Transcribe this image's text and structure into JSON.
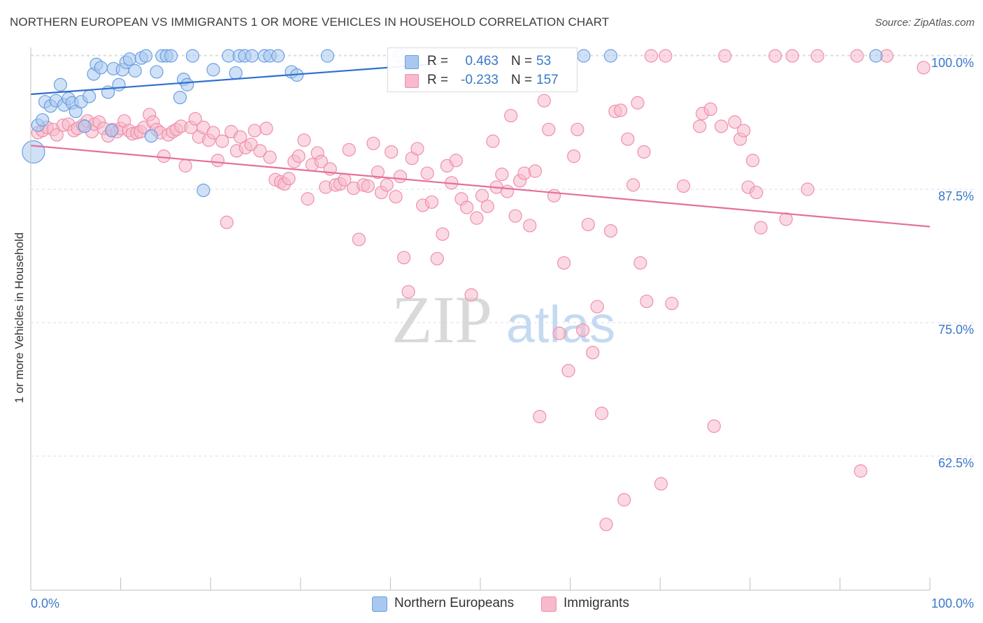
{
  "title": "NORTHERN EUROPEAN VS IMMIGRANTS 1 OR MORE VEHICLES IN HOUSEHOLD CORRELATION CHART",
  "source": "Source: ZipAtlas.com",
  "watermark": {
    "zip": "ZIP",
    "atlas": "atlas"
  },
  "legend_top": [
    {
      "r_label": "R =",
      "r_value": "0.463",
      "n_label": "N =",
      "n_value": "53"
    },
    {
      "r_label": "R =",
      "r_value": "-0.233",
      "n_label": "N =",
      "n_value": "157"
    }
  ],
  "legend_bottom": [
    "Northern Europeans",
    "Immigrants"
  ],
  "colors": {
    "blue_fill": "#a9c8f0",
    "blue_stroke": "#6a9fe0",
    "blue_line": "#2e6fd0",
    "pink_fill": "#f7b9cb",
    "pink_stroke": "#ee8fac",
    "pink_line": "#e5709a",
    "value_text": "#3a78c9",
    "grid": "#d8dde6"
  },
  "chart_data": {
    "type": "scatter",
    "title": "NORTHERN EUROPEAN VS IMMIGRANTS 1 OR MORE VEHICLES IN HOUSEHOLD CORRELATION CHART",
    "xlabel": "",
    "ylabel": "1 or more Vehicles in Household",
    "xlim": [
      0,
      100
    ],
    "ylim": [
      50,
      102
    ],
    "x_tick_labels": [
      "0.0%",
      "100.0%"
    ],
    "y_ticks": [
      62.5,
      75.0,
      87.5,
      100.0
    ],
    "y_tick_labels": [
      "62.5%",
      "75.0%",
      "87.5%",
      "100.0%"
    ],
    "grid": "horizontal dashed",
    "legend_position": "top-center and bottom",
    "series": [
      {
        "name": "Northern Europeans",
        "color": "blue",
        "trend": {
          "x0": 0,
          "y0": 96.4,
          "x1": 46,
          "y1": 99.3
        },
        "points": [
          [
            0.3,
            91.0,
            16
          ],
          [
            0.8,
            93.5,
            9
          ],
          [
            1.3,
            94.0,
            9
          ],
          [
            1.6,
            95.7,
            9
          ],
          [
            2.2,
            95.3,
            9
          ],
          [
            2.8,
            95.8,
            9
          ],
          [
            3.3,
            97.3,
            9
          ],
          [
            3.7,
            95.4,
            9
          ],
          [
            4.2,
            96.0,
            9
          ],
          [
            4.6,
            95.6,
            9
          ],
          [
            5.0,
            94.8,
            9
          ],
          [
            5.6,
            95.7,
            9
          ],
          [
            6.0,
            93.4,
            9
          ],
          [
            6.5,
            96.2,
            9
          ],
          [
            7.0,
            98.3,
            9
          ],
          [
            7.3,
            99.2,
            9
          ],
          [
            7.8,
            98.9,
            9
          ],
          [
            8.6,
            96.6,
            9
          ],
          [
            9.0,
            93.0,
            9
          ],
          [
            9.2,
            98.8,
            9
          ],
          [
            9.8,
            97.3,
            9
          ],
          [
            10.2,
            98.7,
            9
          ],
          [
            10.6,
            99.4,
            9
          ],
          [
            11.0,
            99.7,
            9
          ],
          [
            11.6,
            98.6,
            9
          ],
          [
            12.3,
            99.8,
            9
          ],
          [
            12.8,
            100,
            9
          ],
          [
            13.4,
            92.5,
            9
          ],
          [
            14.0,
            98.5,
            9
          ],
          [
            14.6,
            100,
            9
          ],
          [
            15.1,
            100,
            9
          ],
          [
            15.6,
            100,
            9
          ],
          [
            16.6,
            96.1,
            9
          ],
          [
            17.0,
            97.8,
            9
          ],
          [
            17.4,
            97.3,
            9
          ],
          [
            18.0,
            100,
            9
          ],
          [
            19.2,
            87.4,
            9
          ],
          [
            20.3,
            98.7,
            9
          ],
          [
            22.0,
            100,
            9
          ],
          [
            22.8,
            98.4,
            9
          ],
          [
            23.2,
            100,
            9
          ],
          [
            23.8,
            100,
            9
          ],
          [
            24.6,
            100,
            9
          ],
          [
            26.0,
            100,
            9
          ],
          [
            26.6,
            100,
            9
          ],
          [
            27.5,
            100,
            9
          ],
          [
            29.0,
            98.5,
            9
          ],
          [
            29.6,
            98.2,
            9
          ],
          [
            33.0,
            100,
            9
          ],
          [
            41.0,
            100,
            9
          ],
          [
            61.5,
            100,
            9
          ],
          [
            64.5,
            100,
            9
          ],
          [
            94.0,
            100,
            9
          ]
        ]
      },
      {
        "name": "Immigrants",
        "color": "pink",
        "trend": {
          "x0": 0,
          "y0": 91.6,
          "x1": 100,
          "y1": 84.0
        },
        "points": [
          [
            0.8,
            92.8,
            9
          ],
          [
            1.3,
            93.0,
            9
          ],
          [
            1.8,
            93.3,
            9
          ],
          [
            2.5,
            93.1,
            9
          ],
          [
            2.9,
            92.6,
            9
          ],
          [
            3.6,
            93.5,
            9
          ],
          [
            4.2,
            93.6,
            9
          ],
          [
            4.8,
            93.0,
            9
          ],
          [
            5.2,
            93.2,
            9
          ],
          [
            5.8,
            93.5,
            9
          ],
          [
            6.3,
            93.9,
            9
          ],
          [
            6.8,
            92.9,
            9
          ],
          [
            7.1,
            93.6,
            9
          ],
          [
            7.6,
            93.8,
            9
          ],
          [
            8.1,
            93.2,
            9
          ],
          [
            8.6,
            92.5,
            9
          ],
          [
            9.1,
            93.1,
            9
          ],
          [
            9.6,
            92.9,
            9
          ],
          [
            10.0,
            93.2,
            9
          ],
          [
            10.4,
            93.9,
            9
          ],
          [
            10.9,
            93.0,
            9
          ],
          [
            11.3,
            92.7,
            9
          ],
          [
            11.8,
            92.8,
            9
          ],
          [
            12.2,
            92.9,
            9
          ],
          [
            12.6,
            93.3,
            9
          ],
          [
            13.2,
            94.5,
            9
          ],
          [
            13.6,
            93.8,
            9
          ],
          [
            14.0,
            93.1,
            9
          ],
          [
            14.4,
            92.8,
            9
          ],
          [
            14.8,
            90.6,
            9
          ],
          [
            15.3,
            92.6,
            9
          ],
          [
            15.8,
            92.9,
            9
          ],
          [
            16.2,
            93.1,
            9
          ],
          [
            16.7,
            93.4,
            9
          ],
          [
            17.2,
            89.7,
            9
          ],
          [
            17.8,
            93.3,
            9
          ],
          [
            18.3,
            94.1,
            9
          ],
          [
            18.7,
            92.4,
            9
          ],
          [
            19.2,
            93.3,
            9
          ],
          [
            19.8,
            92.1,
            9
          ],
          [
            20.3,
            92.8,
            9
          ],
          [
            20.8,
            90.2,
            9
          ],
          [
            21.3,
            92.0,
            9
          ],
          [
            21.8,
            84.4,
            9
          ],
          [
            22.3,
            92.9,
            9
          ],
          [
            22.9,
            91.1,
            9
          ],
          [
            23.3,
            92.4,
            9
          ],
          [
            23.9,
            91.4,
            9
          ],
          [
            24.5,
            91.7,
            9
          ],
          [
            24.9,
            93.0,
            9
          ],
          [
            25.5,
            91.1,
            9
          ],
          [
            26.2,
            93.2,
            9
          ],
          [
            26.6,
            90.5,
            9
          ],
          [
            27.2,
            88.4,
            9
          ],
          [
            27.8,
            88.2,
            9
          ],
          [
            28.2,
            88.0,
            9
          ],
          [
            28.7,
            88.5,
            9
          ],
          [
            29.3,
            90.1,
            9
          ],
          [
            29.8,
            90.6,
            9
          ],
          [
            30.4,
            92.1,
            9
          ],
          [
            30.8,
            86.6,
            9
          ],
          [
            31.3,
            89.8,
            9
          ],
          [
            31.9,
            90.9,
            9
          ],
          [
            32.3,
            90.1,
            9
          ],
          [
            32.8,
            87.7,
            9
          ],
          [
            33.3,
            89.4,
            9
          ],
          [
            33.9,
            87.9,
            9
          ],
          [
            34.4,
            88.0,
            9
          ],
          [
            34.9,
            88.4,
            9
          ],
          [
            35.4,
            91.2,
            9
          ],
          [
            35.9,
            87.6,
            9
          ],
          [
            36.5,
            82.8,
            9
          ],
          [
            37.0,
            87.9,
            9
          ],
          [
            37.5,
            87.8,
            9
          ],
          [
            38.1,
            91.8,
            9
          ],
          [
            38.6,
            89.1,
            9
          ],
          [
            39.0,
            87.2,
            9
          ],
          [
            39.6,
            87.9,
            9
          ],
          [
            40.1,
            91.0,
            9
          ],
          [
            40.6,
            86.8,
            9
          ],
          [
            41.1,
            88.7,
            9
          ],
          [
            41.5,
            81.1,
            9
          ],
          [
            42.0,
            77.9,
            9
          ],
          [
            42.4,
            90.4,
            9
          ],
          [
            43.0,
            91.3,
            9
          ],
          [
            43.6,
            86.0,
            9
          ],
          [
            44.1,
            89.0,
            9
          ],
          [
            44.6,
            86.3,
            9
          ],
          [
            45.2,
            81.0,
            9
          ],
          [
            45.8,
            83.3,
            9
          ],
          [
            46.3,
            89.7,
            9
          ],
          [
            46.8,
            88.1,
            9
          ],
          [
            47.3,
            90.2,
            9
          ],
          [
            47.9,
            86.6,
            9
          ],
          [
            48.5,
            85.8,
            9
          ],
          [
            49.0,
            77.6,
            9
          ],
          [
            49.6,
            84.8,
            9
          ],
          [
            50.2,
            86.9,
            9
          ],
          [
            50.8,
            85.9,
            9
          ],
          [
            51.4,
            92.0,
            9
          ],
          [
            51.8,
            87.7,
            9
          ],
          [
            52.4,
            88.9,
            9
          ],
          [
            53.0,
            87.3,
            9
          ],
          [
            53.4,
            94.4,
            9
          ],
          [
            53.9,
            85.0,
            9
          ],
          [
            54.4,
            88.3,
            9
          ],
          [
            54.9,
            89.0,
            9
          ],
          [
            55.5,
            84.1,
            9
          ],
          [
            56.1,
            89.2,
            9
          ],
          [
            56.6,
            66.2,
            9
          ],
          [
            57.1,
            95.8,
            9
          ],
          [
            57.6,
            93.1,
            9
          ],
          [
            58.2,
            86.9,
            9
          ],
          [
            58.8,
            74.0,
            9
          ],
          [
            59.3,
            80.6,
            9
          ],
          [
            59.8,
            70.5,
            9
          ],
          [
            60.4,
            90.6,
            9
          ],
          [
            60.8,
            93.1,
            9
          ],
          [
            61.4,
            74.3,
            9
          ],
          [
            62.0,
            84.2,
            9
          ],
          [
            62.5,
            72.2,
            9
          ],
          [
            63.0,
            76.5,
            9
          ],
          [
            63.5,
            66.5,
            9
          ],
          [
            64.0,
            56.1,
            9
          ],
          [
            64.5,
            83.6,
            9
          ],
          [
            65.0,
            94.8,
            9
          ],
          [
            65.6,
            94.9,
            9
          ],
          [
            66.0,
            58.4,
            9
          ],
          [
            66.4,
            92.2,
            9
          ],
          [
            67.0,
            87.9,
            9
          ],
          [
            67.5,
            95.6,
            9
          ],
          [
            67.8,
            80.6,
            9
          ],
          [
            68.2,
            91.0,
            9
          ],
          [
            68.5,
            77.0,
            9
          ],
          [
            69.0,
            100,
            9
          ],
          [
            70.1,
            59.9,
            9
          ],
          [
            70.6,
            100,
            9
          ],
          [
            71.3,
            76.8,
            9
          ],
          [
            72.6,
            87.8,
            9
          ],
          [
            74.4,
            93.4,
            9
          ],
          [
            74.7,
            94.6,
            9
          ],
          [
            75.6,
            95.0,
            9
          ],
          [
            76.0,
            65.3,
            9
          ],
          [
            76.8,
            93.4,
            9
          ],
          [
            77.2,
            100,
            9
          ],
          [
            78.3,
            93.8,
            9
          ],
          [
            78.9,
            92.2,
            9
          ],
          [
            79.3,
            93.0,
            9
          ],
          [
            79.8,
            87.7,
            9
          ],
          [
            80.3,
            90.2,
            9
          ],
          [
            80.7,
            87.2,
            9
          ],
          [
            81.2,
            83.9,
            9
          ],
          [
            82.8,
            100,
            9
          ],
          [
            84.0,
            84.7,
            9
          ],
          [
            84.7,
            100,
            9
          ],
          [
            86.4,
            87.5,
            9
          ],
          [
            87.5,
            100,
            9
          ],
          [
            91.9,
            100,
            9
          ],
          [
            92.3,
            61.1,
            9
          ],
          [
            95.2,
            100,
            9
          ],
          [
            99.3,
            98.9,
            9
          ]
        ]
      }
    ]
  }
}
